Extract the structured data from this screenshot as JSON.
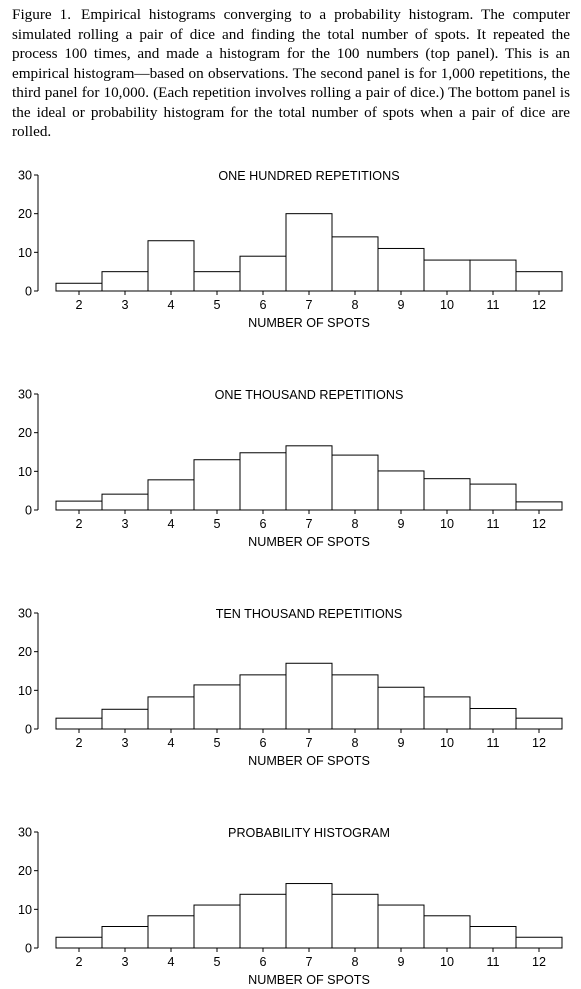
{
  "caption": {
    "label": "Figure 1.",
    "text": "Empirical histograms converging to a probability histogram. The computer simulated rolling a pair of dice and finding the total number of spots. It repeated the process 100 times, and made a histogram for the 100 numbers (top panel). This is an empirical histogram—based on observations. The second panel is for 1,000 repetitions, the third panel for 10,000. (Each repetition involves rolling a pair of dice.) The bottom panel is the ideal or probability histogram for the total number of spots when a pair of dice are rolled."
  },
  "chart_data": [
    {
      "type": "bar",
      "title": "ONE HUNDRED REPETITIONS",
      "xlabel": "NUMBER OF SPOTS",
      "ylabel": "",
      "categories": [
        "2",
        "3",
        "4",
        "5",
        "6",
        "7",
        "8",
        "9",
        "10",
        "11",
        "12"
      ],
      "values": [
        2,
        5,
        13,
        5,
        9,
        20,
        14,
        11,
        8,
        8,
        5
      ],
      "ylim": [
        0,
        30
      ],
      "yticks": [
        "0",
        "10",
        "20",
        "30"
      ],
      "grid": false
    },
    {
      "type": "bar",
      "title": "ONE THOUSAND REPETITIONS",
      "xlabel": "NUMBER OF SPOTS",
      "ylabel": "",
      "categories": [
        "2",
        "3",
        "4",
        "5",
        "6",
        "7",
        "8",
        "9",
        "10",
        "11",
        "12"
      ],
      "values": [
        2.3,
        4.1,
        7.8,
        13,
        14.8,
        16.6,
        14.2,
        10.1,
        8.1,
        6.7,
        2.1
      ],
      "ylim": [
        0,
        30
      ],
      "yticks": [
        "0",
        "10",
        "20",
        "30"
      ],
      "grid": false
    },
    {
      "type": "bar",
      "title": "TEN THOUSAND REPETITIONS",
      "xlabel": "NUMBER OF SPOTS",
      "ylabel": "",
      "categories": [
        "2",
        "3",
        "4",
        "5",
        "6",
        "7",
        "8",
        "9",
        "10",
        "11",
        "12"
      ],
      "values": [
        2.8,
        5.1,
        8.3,
        11.4,
        14,
        17,
        14,
        10.8,
        8.3,
        5.3,
        2.8
      ],
      "ylim": [
        0,
        30
      ],
      "yticks": [
        "0",
        "10",
        "20",
        "30"
      ],
      "grid": false
    },
    {
      "type": "bar",
      "title": "PROBABILITY HISTOGRAM",
      "xlabel": "NUMBER OF SPOTS",
      "ylabel": "",
      "categories": [
        "2",
        "3",
        "4",
        "5",
        "6",
        "7",
        "8",
        "9",
        "10",
        "11",
        "12"
      ],
      "values": [
        2.78,
        5.56,
        8.33,
        11.11,
        13.89,
        16.67,
        13.89,
        11.11,
        8.33,
        5.56,
        2.78
      ],
      "ylim": [
        0,
        30
      ],
      "yticks": [
        "0",
        "10",
        "20",
        "30"
      ],
      "grid": false
    }
  ]
}
